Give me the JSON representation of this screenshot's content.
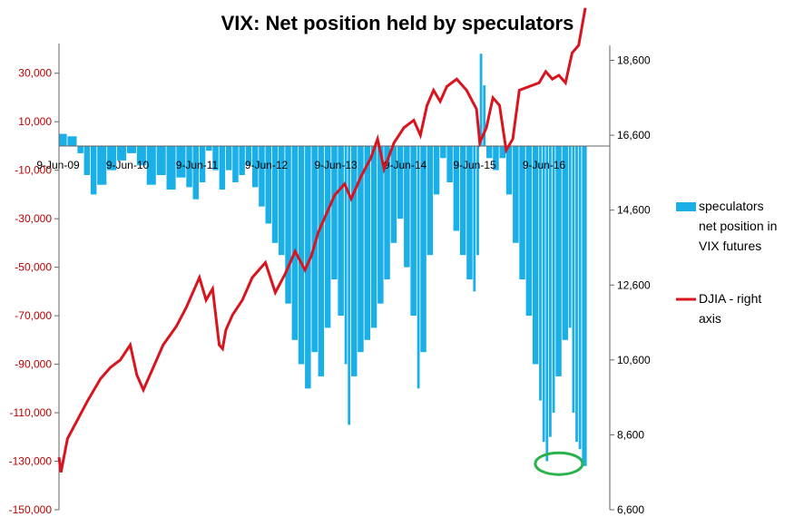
{
  "chart_data": {
    "type": "bar+line",
    "title": "VIX: Net position held by speculators",
    "x_tick_labels": [
      "9-Jun-09",
      "9-Jun-10",
      "9-Jun-11",
      "9-Jun-12",
      "9-Jun-13",
      "9-Jun-14",
      "9-Jun-15",
      "9-Jun-16"
    ],
    "x_range": [
      2009.17,
      2017.15
    ],
    "y_left": {
      "range": [
        -150000,
        40000
      ],
      "ticks": [
        30000,
        10000,
        -10000,
        -30000,
        -50000,
        -70000,
        -90000,
        -110000,
        -130000,
        -150000
      ],
      "tick_labels": [
        "30,000",
        "10,000",
        "-10,000",
        "-30,000",
        "-50,000",
        "-70,000",
        "-90,000",
        "-110,000",
        "-130,000",
        "-150,000"
      ],
      "tick_color": "#c00000"
    },
    "y_right": {
      "range": [
        6600,
        19000
      ],
      "ticks": [
        18600,
        16600,
        14600,
        12600,
        10600,
        8600,
        6600
      ],
      "tick_labels": [
        "18,600",
        "16,600",
        "14,600",
        "12,600",
        "10,600",
        "8,600",
        "6,600"
      ]
    },
    "series": [
      {
        "name": "speculators net position in VIX futures",
        "type": "bar",
        "axis": "left",
        "color": "#1aafe6",
        "points": [
          [
            2009.17,
            5000
          ],
          [
            2009.3,
            4000
          ],
          [
            2009.45,
            -3000
          ],
          [
            2009.55,
            -12000
          ],
          [
            2009.65,
            -20000
          ],
          [
            2009.75,
            -16000
          ],
          [
            2009.9,
            -10000
          ],
          [
            2010.05,
            -6000
          ],
          [
            2010.2,
            -3000
          ],
          [
            2010.35,
            -8000
          ],
          [
            2010.5,
            -16000
          ],
          [
            2010.65,
            -12000
          ],
          [
            2010.8,
            -18000
          ],
          [
            2010.95,
            -13000
          ],
          [
            2011.1,
            -17000
          ],
          [
            2011.2,
            -22000
          ],
          [
            2011.3,
            -15000
          ],
          [
            2011.4,
            -2000
          ],
          [
            2011.5,
            -10000
          ],
          [
            2011.6,
            -18000
          ],
          [
            2011.7,
            -10000
          ],
          [
            2011.8,
            -15000
          ],
          [
            2011.9,
            -12000
          ],
          [
            2012.0,
            -8000
          ],
          [
            2012.1,
            -17000
          ],
          [
            2012.2,
            -25000
          ],
          [
            2012.3,
            -32000
          ],
          [
            2012.4,
            -40000
          ],
          [
            2012.5,
            -45000
          ],
          [
            2012.6,
            -65000
          ],
          [
            2012.7,
            -80000
          ],
          [
            2012.8,
            -90000
          ],
          [
            2012.9,
            -100000
          ],
          [
            2013.0,
            -85000
          ],
          [
            2013.1,
            -95000
          ],
          [
            2013.2,
            -75000
          ],
          [
            2013.3,
            -55000
          ],
          [
            2013.4,
            -70000
          ],
          [
            2013.5,
            -90000
          ],
          [
            2013.55,
            -115000
          ],
          [
            2013.6,
            -95000
          ],
          [
            2013.7,
            -85000
          ],
          [
            2013.8,
            -80000
          ],
          [
            2013.9,
            -75000
          ],
          [
            2014.0,
            -65000
          ],
          [
            2014.1,
            -55000
          ],
          [
            2014.2,
            -40000
          ],
          [
            2014.3,
            -30000
          ],
          [
            2014.4,
            -50000
          ],
          [
            2014.5,
            -70000
          ],
          [
            2014.6,
            -100000
          ],
          [
            2014.65,
            -85000
          ],
          [
            2014.75,
            -45000
          ],
          [
            2014.85,
            -20000
          ],
          [
            2014.95,
            -5000
          ],
          [
            2015.05,
            -15000
          ],
          [
            2015.15,
            -35000
          ],
          [
            2015.25,
            -45000
          ],
          [
            2015.35,
            -55000
          ],
          [
            2015.45,
            -60000
          ],
          [
            2015.5,
            -45000
          ],
          [
            2015.55,
            38000
          ],
          [
            2015.6,
            25000
          ],
          [
            2015.65,
            -5000
          ],
          [
            2015.75,
            -10000
          ],
          [
            2015.85,
            -5000
          ],
          [
            2015.95,
            -20000
          ],
          [
            2016.05,
            -40000
          ],
          [
            2016.15,
            -55000
          ],
          [
            2016.25,
            -70000
          ],
          [
            2016.35,
            -90000
          ],
          [
            2016.45,
            -105000
          ],
          [
            2016.5,
            -122000
          ],
          [
            2016.55,
            -130000
          ],
          [
            2016.6,
            -120000
          ],
          [
            2016.65,
            -110000
          ],
          [
            2016.7,
            -95000
          ],
          [
            2016.8,
            -80000
          ],
          [
            2016.9,
            -75000
          ],
          [
            2016.95,
            -110000
          ],
          [
            2017.0,
            -122000
          ],
          [
            2017.05,
            -125000
          ],
          [
            2017.1,
            -132000
          ]
        ]
      },
      {
        "name": "DJIA - right axis",
        "type": "line",
        "axis": "right",
        "color": "#d9141e",
        "points": [
          [
            2009.17,
            8000
          ],
          [
            2009.2,
            7600
          ],
          [
            2009.3,
            8500
          ],
          [
            2009.45,
            9000
          ],
          [
            2009.6,
            9500
          ],
          [
            2009.8,
            10100
          ],
          [
            2009.95,
            10400
          ],
          [
            2010.1,
            10600
          ],
          [
            2010.25,
            11000
          ],
          [
            2010.35,
            10200
          ],
          [
            2010.45,
            9800
          ],
          [
            2010.6,
            10400
          ],
          [
            2010.75,
            11000
          ],
          [
            2010.95,
            11500
          ],
          [
            2011.1,
            12000
          ],
          [
            2011.2,
            12400
          ],
          [
            2011.3,
            12800
          ],
          [
            2011.4,
            12200
          ],
          [
            2011.5,
            12500
          ],
          [
            2011.6,
            11000
          ],
          [
            2011.65,
            10900
          ],
          [
            2011.7,
            11400
          ],
          [
            2011.8,
            11800
          ],
          [
            2011.95,
            12200
          ],
          [
            2012.1,
            12800
          ],
          [
            2012.3,
            13200
          ],
          [
            2012.45,
            12400
          ],
          [
            2012.6,
            12900
          ],
          [
            2012.75,
            13500
          ],
          [
            2012.9,
            13000
          ],
          [
            2013.0,
            13400
          ],
          [
            2013.1,
            14000
          ],
          [
            2013.25,
            14600
          ],
          [
            2013.35,
            15000
          ],
          [
            2013.5,
            15300
          ],
          [
            2013.6,
            14900
          ],
          [
            2013.75,
            15500
          ],
          [
            2013.9,
            16000
          ],
          [
            2014.0,
            16500
          ],
          [
            2014.1,
            15700
          ],
          [
            2014.25,
            16400
          ],
          [
            2014.4,
            16800
          ],
          [
            2014.55,
            17000
          ],
          [
            2014.65,
            16600
          ],
          [
            2014.75,
            17400
          ],
          [
            2014.85,
            17800
          ],
          [
            2014.95,
            17500
          ],
          [
            2015.05,
            17900
          ],
          [
            2015.2,
            18100
          ],
          [
            2015.35,
            17800
          ],
          [
            2015.5,
            17300
          ],
          [
            2015.55,
            16400
          ],
          [
            2015.65,
            16800
          ],
          [
            2015.75,
            17600
          ],
          [
            2015.85,
            17400
          ],
          [
            2015.95,
            16200
          ],
          [
            2016.05,
            16500
          ],
          [
            2016.15,
            17800
          ],
          [
            2016.3,
            17900
          ],
          [
            2016.45,
            18000
          ],
          [
            2016.55,
            18300
          ],
          [
            2016.65,
            18100
          ],
          [
            2016.75,
            18200
          ],
          [
            2016.85,
            18000
          ],
          [
            2016.95,
            18800
          ],
          [
            2017.05,
            19000
          ],
          [
            2017.15,
            20000
          ]
        ]
      }
    ],
    "annotation": {
      "shape": "ellipse",
      "color": "#2bb24c",
      "x": 2016.75,
      "y": -131000
    },
    "legend_position": "right",
    "grid": false
  },
  "legend": {
    "bar_label_lines": [
      "speculators",
      "net position in",
      "VIX futures"
    ],
    "line_label_lines": [
      "DJIA - right",
      "axis"
    ]
  }
}
